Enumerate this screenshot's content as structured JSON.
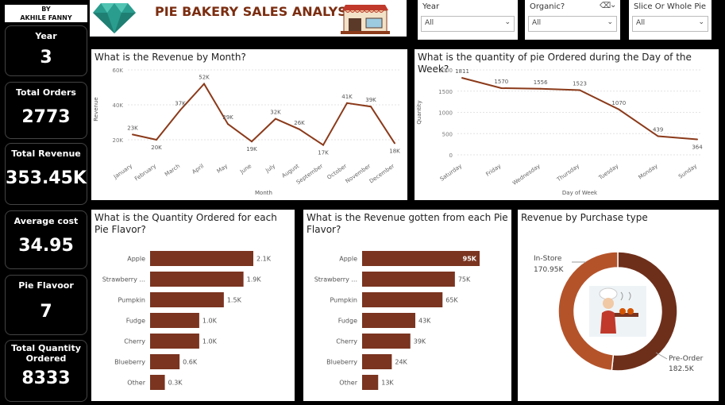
{
  "byline": {
    "line1": "BY",
    "line2": "AKHILE FANNY"
  },
  "kpis": [
    {
      "label": "Year",
      "value": "3"
    },
    {
      "label": "Total Orders",
      "value": "2773"
    },
    {
      "label": "Total Revenue",
      "value": "353.45K"
    },
    {
      "label": "Average cost",
      "value": "34.95"
    },
    {
      "label": "Pie Flavoor",
      "value": "7"
    },
    {
      "label": "Total Quantity Ordered",
      "value": "8333"
    }
  ],
  "header": {
    "title": "PIE BAKERY SALES ANALYSIS"
  },
  "slicers": [
    {
      "label": "Year",
      "value": "All"
    },
    {
      "label": "Organic?",
      "value": "All"
    },
    {
      "label": "Slice Or Whole Pie",
      "value": "All"
    }
  ],
  "colors": {
    "primary": "#8b3a1a",
    "bar": "#7a3420",
    "donut_light": "#b4532a",
    "donut_dark": "#6e2f1a",
    "title": "#7b2d10"
  },
  "icons": [
    "diamond-logo-icon",
    "bakery-shop-icon",
    "eraser-icon",
    "chevron-down-icon",
    "baker-illustration-icon"
  ],
  "chart_data": [
    {
      "type": "line",
      "title": "What is the Revenue by Month?",
      "xlabel": "Month",
      "ylabel": "Revenue",
      "categories": [
        "January",
        "February",
        "March",
        "April",
        "May",
        "June",
        "July",
        "August",
        "September",
        "October",
        "November",
        "December"
      ],
      "values": [
        23000,
        20000,
        37000,
        52000,
        29000,
        19000,
        32000,
        26000,
        17000,
        41000,
        39000,
        18000
      ],
      "data_labels": [
        "23K",
        "20K",
        "37K",
        "52K",
        "29K",
        "19K",
        "32K",
        "26K",
        "17K",
        "41K",
        "39K",
        "18K"
      ],
      "yticks": [
        "20K",
        "40K",
        "60K"
      ],
      "ylim": [
        15000,
        60000
      ]
    },
    {
      "type": "line",
      "title": "What is the quantity of pie Ordered during the Day of the Week?",
      "xlabel": "Day of Week",
      "ylabel": "Quantity",
      "categories": [
        "Saturday",
        "Friday",
        "Wednesday",
        "Thursday",
        "Tuesday",
        "Monday",
        "Sunday"
      ],
      "values": [
        1811,
        1570,
        1556,
        1523,
        1070,
        439,
        364
      ],
      "data_labels": [
        "1811",
        "1570",
        "1556",
        "1523",
        "1070",
        "439",
        "364"
      ],
      "yticks": [
        "0",
        "500",
        "1000",
        "1500",
        "2000"
      ],
      "ylim": [
        0,
        2000
      ]
    },
    {
      "type": "bar",
      "title": "What is the Quantity Ordered for each Pie Flavor?",
      "categories": [
        "Apple",
        "Strawberry ...",
        "Pumpkin",
        "Fudge",
        "Cherry",
        "Blueberry",
        "Other"
      ],
      "values": [
        2100,
        1900,
        1500,
        1000,
        1000,
        600,
        300
      ],
      "data_labels": [
        "2.1K",
        "1.9K",
        "1.5K",
        "1.0K",
        "1.0K",
        "0.6K",
        "0.3K"
      ]
    },
    {
      "type": "bar",
      "title": "What is the Revenue gotten from each Pie Flavor?",
      "categories": [
        "Apple",
        "Strawberry ...",
        "Pumpkin",
        "Fudge",
        "Cherry",
        "Blueberry",
        "Other"
      ],
      "values": [
        95000,
        75000,
        65000,
        43000,
        39000,
        24000,
        13000
      ],
      "data_labels": [
        "95K",
        "75K",
        "65K",
        "43K",
        "39K",
        "24K",
        "13K"
      ]
    },
    {
      "type": "pie",
      "title": "Revenue by Purchase type",
      "categories": [
        "In-Store",
        "Pre-Order"
      ],
      "values": [
        170950,
        182500
      ],
      "data_labels": [
        "170.95K",
        "182.5K"
      ]
    }
  ]
}
